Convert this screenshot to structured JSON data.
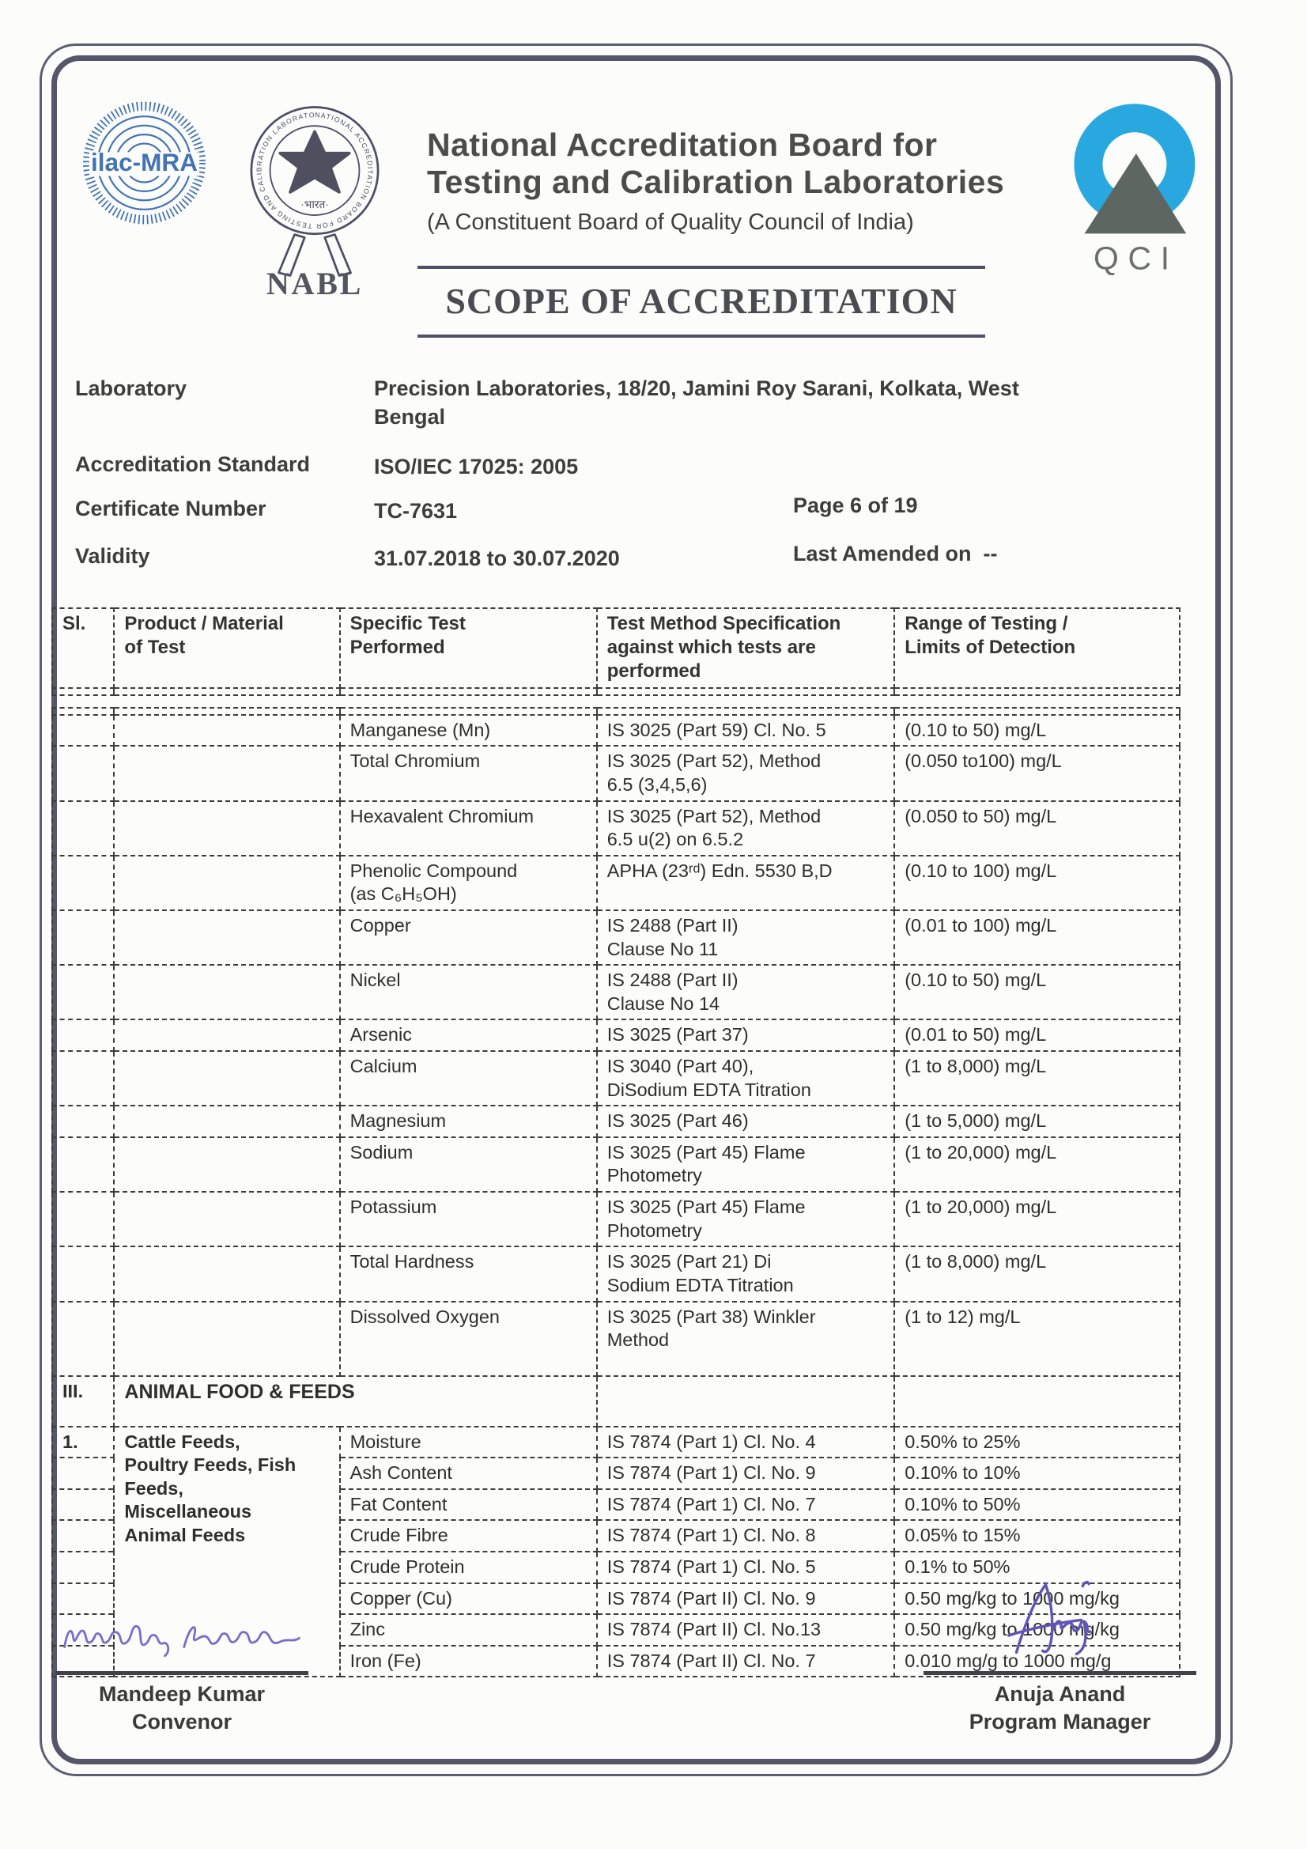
{
  "page": {
    "header": {
      "ilac_logo_text": "ilac-MRA",
      "nabl_ring_text": "NATIONAL ACCREDITATION BOARD FOR TESTING AND CALIBRATION LABORATORIES • INDIA •",
      "nabl_bharat_text": "·भारत·",
      "nabl_label": "NABL",
      "title_line1": "National Accreditation Board for",
      "title_line2": "Testing and Calibration Laboratories",
      "subtitle": "(A Constituent Board of Quality Council of India)",
      "qci_label": "QCI"
    },
    "scope_title": "SCOPE OF ACCREDITATION",
    "info": {
      "laboratory_label": "Laboratory",
      "laboratory_value": "Precision Laboratories, 18/20, Jamini Roy Sarani, Kolkata, West Bengal",
      "standard_label": "Accreditation Standard",
      "standard_value": "ISO/IEC 17025: 2005",
      "certificate_label": "Certificate Number",
      "certificate_value": "TC-7631",
      "page_value": "Page 6 of 19",
      "validity_label": "Validity",
      "validity_value": "31.07.2018 to 30.07.2020",
      "amended_label": "Last Amended on",
      "amended_value": "--"
    },
    "table": {
      "headers": [
        "Sl.",
        "Product / Material\nof Test",
        "Specific Test\nPerformed",
        "Test Method Specification\nagainst which tests are\nperformed",
        "Range of Testing /\nLimits of Detection"
      ],
      "rows": [
        {
          "sl": "",
          "product": "",
          "test": "Manganese (Mn)",
          "method": "IS 3025 (Part 59) Cl. No. 5",
          "range": "(0.10 to 50) mg/L",
          "h": 38
        },
        {
          "sl": "",
          "product": "",
          "test": "Total Chromium",
          "method": "IS 3025 (Part 52), Method\n6.5 (3,4,5,6)",
          "range": "(0.050 to100) mg/L",
          "h": 62
        },
        {
          "sl": "",
          "product": "",
          "test": "Hexavalent Chromium",
          "method": "IS 3025 (Part 52), Method\n6.5 u(2) on 6.5.2",
          "range": "(0.050 to 50) mg/L",
          "h": 62
        },
        {
          "sl": "",
          "product": "",
          "test": "Phenolic Compound\n(as C₆H₅OH)",
          "method": "APHA (23ʳᵈ) Edn. 5530 B,D",
          "range": "(0.10 to 100) mg/L",
          "h": 58
        },
        {
          "sl": "",
          "product": "",
          "test": "Copper",
          "method": "IS 2488 (Part II)\nClause No 11",
          "range": "(0.01 to 100) mg/L",
          "h": 62
        },
        {
          "sl": "",
          "product": "",
          "test": "Nickel",
          "method": "IS 2488 (Part II)\nClause No 14",
          "range": "(0.10 to 50) mg/L",
          "h": 64
        },
        {
          "sl": "",
          "product": "",
          "test": "Arsenic",
          "method": "IS 3025 (Part 37)",
          "range": "(0.01 to 50) mg/L",
          "h": 32
        },
        {
          "sl": "",
          "product": "",
          "test": "Calcium",
          "method": "IS 3040 (Part 40),\nDiSodium EDTA Titration",
          "range": "(1 to 8,000) mg/L",
          "h": 68
        },
        {
          "sl": "",
          "product": "",
          "test": "Magnesium",
          "method": "IS 3025 (Part 46)",
          "range": "(1 to 5,000) mg/L",
          "h": 34
        },
        {
          "sl": "",
          "product": "",
          "test": "Sodium",
          "method": "IS 3025 (Part 45) Flame\nPhotometry",
          "range": "(1 to 20,000) mg/L",
          "h": 62
        },
        {
          "sl": "",
          "product": "",
          "test": "Potassium",
          "method": "IS 3025 (Part 45) Flame\nPhotometry",
          "range": "(1 to 20,000) mg/L",
          "h": 66
        },
        {
          "sl": "",
          "product": "",
          "test": "Total Hardness",
          "method": "IS 3025 (Part 21) Di\nSodium EDTA Titration",
          "range": "(1 to 8,000) mg/L",
          "h": 66
        },
        {
          "sl": "",
          "product": "",
          "test": "Dissolved Oxygen",
          "method": "IS 3025 (Part 38) Winkler\nMethod",
          "range": "(1 to 12) mg/L",
          "h": 94
        },
        {
          "type": "section",
          "sl": "III.",
          "product": "ANIMAL FOOD & FEEDS",
          "h": 64
        },
        {
          "sl": "1.",
          "product": "Cattle Feeds,\nPoultry Feeds, Fish\nFeeds,\nMiscellaneous\nAnimal Feeds",
          "product_rowspan": 8,
          "test": "Moisture",
          "method": "IS 7874 (Part 1) Cl. No. 4",
          "range": "0.50% to 25%",
          "h": 34
        },
        {
          "sl": "",
          "skip_product": true,
          "test": "Ash Content",
          "method": "IS 7874 (Part 1) Cl. No. 9",
          "range": "0.10% to 10%",
          "h": 34
        },
        {
          "sl": "",
          "skip_product": true,
          "test": "Fat Content",
          "method": "IS 7874 (Part 1) Cl. No. 7",
          "range": "0.10% to 50%",
          "h": 36
        },
        {
          "sl": "",
          "skip_product": true,
          "test": "Crude Fibre",
          "method": "IS 7874 (Part 1) Cl. No. 8",
          "range": "0.05% to 15%",
          "h": 30
        },
        {
          "sl": "",
          "skip_product": true,
          "test": "Crude Protein",
          "method": "IS 7874 (Part 1) Cl. No. 5",
          "range": "0.1% to 50%",
          "h": 34
        },
        {
          "sl": "",
          "skip_product": true,
          "test": "Copper (Cu)",
          "method": "IS 7874 (Part II) Cl. No. 9",
          "range": "0.50 mg/kg to 1000 mg/kg",
          "h": 32
        },
        {
          "sl": "",
          "skip_product": true,
          "test": "Zinc",
          "method": "IS 7874 (Part II) Cl. No.13",
          "range": "0.50 mg/kg to 1000 mg/kg",
          "h": 32
        },
        {
          "sl": "",
          "skip_product": true,
          "test": "Iron (Fe)",
          "method": "IS 7874 (Part II) Cl. No. 7",
          "range": "0.010 mg/g to 1000 mg/g",
          "h": 32
        }
      ]
    },
    "signatures": {
      "left_name": "Mandeep Kumar",
      "left_role": "Convenor",
      "right_name": "Anuja Anand",
      "right_role": "Program Manager"
    },
    "colors": {
      "frame": "#56566b",
      "ilac_blue": "#4273b3",
      "qci_blue": "#29a8e0",
      "qci_gray": "#5d6660",
      "ink_purple": "#7a6cc8",
      "text_dark": "#3d3d3d"
    }
  }
}
